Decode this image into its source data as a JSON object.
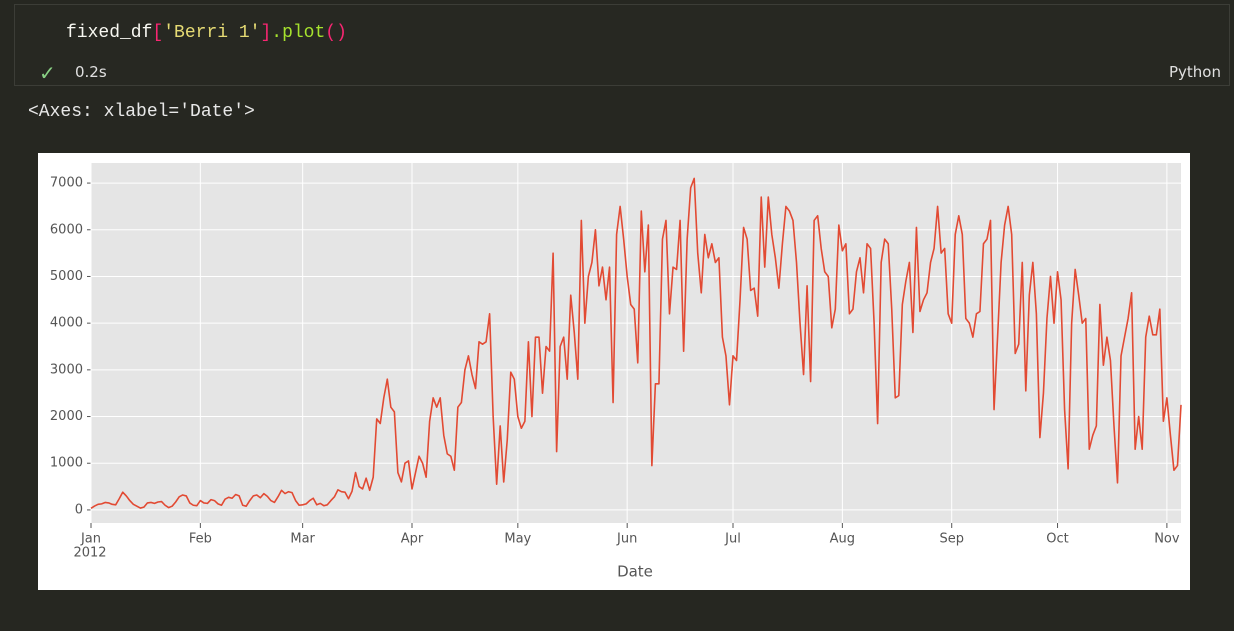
{
  "cell": {
    "code_tokens": [
      "fixed_df",
      "[",
      "'Berri 1'",
      "]",
      ".plot",
      "()"
    ],
    "status": "0.2s",
    "language": "Python",
    "output": "<Axes: xlabel='Date'>"
  },
  "chart_data": {
    "type": "line",
    "xlabel": "Date",
    "x_year_label": "2012",
    "color": "#e24a33",
    "values": [
      35,
      83,
      120,
      130,
      160,
      150,
      120,
      110,
      240,
      380,
      300,
      200,
      120,
      80,
      40,
      60,
      150,
      160,
      140,
      170,
      180,
      100,
      50,
      80,
      170,
      280,
      320,
      300,
      150,
      100,
      90,
      200,
      150,
      140,
      220,
      200,
      130,
      100,
      230,
      270,
      250,
      330,
      300,
      100,
      80,
      200,
      300,
      320,
      260,
      350,
      290,
      200,
      160,
      280,
      420,
      350,
      390,
      370,
      200,
      100,
      110,
      130,
      200,
      250,
      110,
      140,
      90,
      110,
      200,
      280,
      430,
      390,
      380,
      240,
      400,
      800,
      500,
      450,
      680,
      420,
      700,
      1950,
      1850,
      2400,
      2800,
      2200,
      2100,
      800,
      600,
      1000,
      1050,
      450,
      800,
      1150,
      1000,
      700,
      1900,
      2400,
      2200,
      2400,
      1600,
      1200,
      1150,
      850,
      2200,
      2300,
      3000,
      3300,
      2900,
      2600,
      3600,
      3550,
      3600,
      4200,
      2000,
      550,
      1800,
      600,
      1500,
      2950,
      2800,
      2000,
      1750,
      1900,
      3600,
      2000,
      3700,
      3700,
      2500,
      3500,
      3400,
      5500,
      1250,
      3500,
      3700,
      2800,
      4600,
      3800,
      2800,
      6200,
      4000,
      5000,
      5300,
      6000,
      4800,
      5200,
      4500,
      5200,
      2300,
      5900,
      6500,
      5800,
      5000,
      4400,
      4300,
      3150,
      6400,
      5100,
      6100,
      950,
      2700,
      2700,
      5800,
      6200,
      4200,
      5200,
      5150,
      6200,
      3400,
      5800,
      6900,
      7100,
      5500,
      4650,
      5900,
      5400,
      5700,
      5300,
      5400,
      3700,
      3300,
      2250,
      3300,
      3200,
      4500,
      6050,
      5800,
      4700,
      4750,
      4150,
      6700,
      5200,
      6700,
      5900,
      5400,
      4750,
      5700,
      6500,
      6400,
      6200,
      5300,
      4000,
      2900,
      4800,
      2750,
      6200,
      6300,
      5600,
      5100,
      5000,
      3900,
      4300,
      6100,
      5550,
      5700,
      4200,
      4300,
      5100,
      5400,
      4650,
      5700,
      5600,
      4000,
      1850,
      5300,
      5800,
      5700,
      4300,
      2400,
      2450,
      4400,
      4900,
      5300,
      3800,
      6050,
      4250,
      4500,
      4650,
      5300,
      5600,
      6500,
      5500,
      5600,
      4200,
      4000,
      5900,
      6300,
      5900,
      4100,
      4000,
      3700,
      4200,
      4250,
      5700,
      5800,
      6200,
      2150,
      3700,
      5300,
      6100,
      6500,
      5900,
      3350,
      3550,
      5300,
      2550,
      4600,
      5300,
      4200,
      1550,
      2500,
      4100,
      5000,
      4000,
      5100,
      4500,
      2150,
      880,
      4000,
      5150,
      4600,
      4000,
      4100,
      1300,
      1600,
      1800,
      4400,
      3100,
      3700,
      3200,
      1800,
      580,
      3300,
      3700,
      4100,
      4650,
      1300,
      2000,
      1300,
      3700,
      4150,
      3750,
      3750,
      4300,
      1900,
      2400,
      1600,
      850,
      950,
      2250
    ],
    "xlim": [
      0,
      309
    ],
    "xticks": [
      {
        "value": 0,
        "label": "Jan"
      },
      {
        "value": 31,
        "label": "Feb"
      },
      {
        "value": 60,
        "label": "Mar"
      },
      {
        "value": 91,
        "label": "Apr"
      },
      {
        "value": 121,
        "label": "May"
      },
      {
        "value": 152,
        "label": "Jun"
      },
      {
        "value": 182,
        "label": "Jul"
      },
      {
        "value": 213,
        "label": "Aug"
      },
      {
        "value": 244,
        "label": "Sep"
      },
      {
        "value": 274,
        "label": "Oct"
      },
      {
        "value": 305,
        "label": "Nov"
      }
    ],
    "ylim": [
      -280,
      7430
    ],
    "yticks": [
      0,
      1000,
      2000,
      3000,
      4000,
      5000,
      6000,
      7000
    ],
    "grid": true
  }
}
